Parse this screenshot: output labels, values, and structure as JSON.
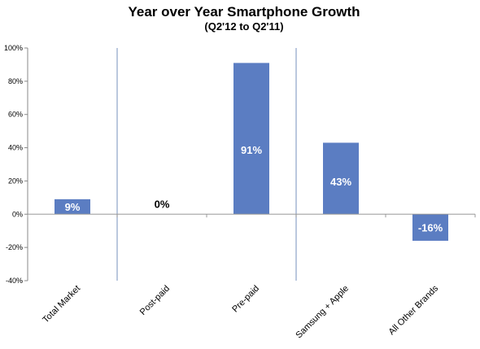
{
  "chart_data": {
    "type": "bar",
    "title": "Year over Year Smartphone Growth",
    "subtitle": "(Q2'12 to Q2'11)",
    "categories": [
      "Total Market",
      "Post-paid",
      "Pre-paid",
      "Samsung + Apple",
      "All Other Brands"
    ],
    "values": [
      9,
      0,
      91,
      43,
      -16
    ],
    "data_labels": [
      "9%",
      "0%",
      "91%",
      "43%",
      "-16%"
    ],
    "ylim": [
      -40,
      100
    ],
    "yticks": [
      100,
      80,
      60,
      40,
      20,
      0,
      -20,
      -40
    ],
    "ytick_labels": [
      "100%",
      "80%",
      "60%",
      "40%",
      "20%",
      "0%",
      "-20%",
      "-40%"
    ],
    "xlabel": "",
    "ylabel": "",
    "grid": false,
    "legend": "none",
    "bar_color": "#5b7dc2",
    "divider_color": "#8ea3c9",
    "label_color_inside": "#ffffff",
    "label_color_outside": "#000000"
  }
}
